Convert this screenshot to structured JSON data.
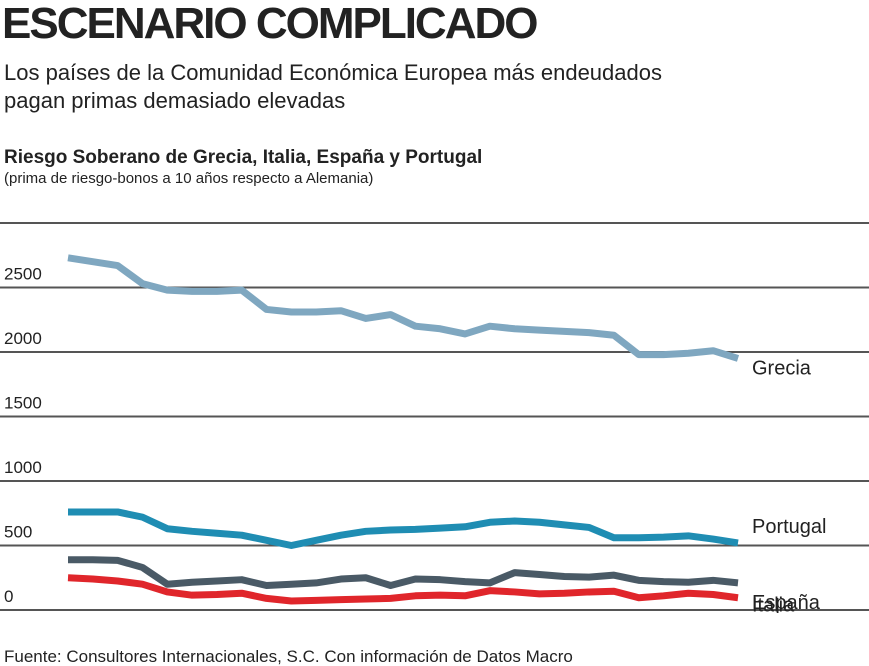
{
  "chart_data": {
    "type": "line",
    "title": "ESCENARIO COMPLICADO",
    "subtitle": [
      "Los países de la Comunidad Económica Europea más endeudados",
      "pagan primas demasiado elevadas"
    ],
    "chart_title": "Riesgo Soberano de Grecia, Italia, España y Portugal",
    "chart_subtitle": "(prima de riesgo-bonos a 10 años respecto a Alemania)",
    "source": "Fuente: Consultores Internacionales, S.C. Con información de Datos Macro",
    "categories": [
      null,
      null,
      null,
      null,
      null,
      null,
      null,
      null,
      null,
      null,
      null,
      null,
      null,
      null,
      null,
      null,
      null,
      null,
      null,
      null,
      null,
      null,
      null,
      null,
      null,
      null,
      null,
      null
    ],
    "series": [
      {
        "name": "Grecia",
        "color": "#7fa7c0",
        "values": [
          2730,
          2700,
          2670,
          2530,
          2480,
          2470,
          2470,
          2480,
          2330,
          2310,
          2310,
          2320,
          2260,
          2290,
          2200,
          2180,
          2140,
          2200,
          2180,
          2170,
          2160,
          2150,
          2130,
          1980,
          1980,
          1990,
          2010,
          1950
        ]
      },
      {
        "name": "Portugal",
        "color": "#1f8db3",
        "values": [
          760,
          760,
          760,
          720,
          630,
          610,
          595,
          580,
          540,
          500,
          540,
          580,
          610,
          620,
          625,
          635,
          645,
          680,
          690,
          680,
          660,
          640,
          560,
          560,
          565,
          575,
          550,
          520
        ]
      },
      {
        "name": "España",
        "color": "#4a5a66",
        "values": [
          390,
          390,
          385,
          330,
          200,
          215,
          225,
          235,
          190,
          200,
          210,
          240,
          250,
          190,
          240,
          235,
          220,
          210,
          290,
          275,
          260,
          255,
          270,
          230,
          220,
          215,
          230,
          210
        ]
      },
      {
        "name": "Italia",
        "color": "#e0262b",
        "values": [
          250,
          240,
          225,
          200,
          140,
          115,
          120,
          130,
          90,
          70,
          75,
          80,
          85,
          90,
          110,
          115,
          110,
          150,
          140,
          125,
          130,
          140,
          145,
          95,
          110,
          130,
          120,
          95
        ]
      }
    ],
    "ylim": [
      0,
      3000
    ],
    "yticks": [
      0,
      500,
      1000,
      1500,
      2000,
      2500
    ],
    "grid": true
  }
}
